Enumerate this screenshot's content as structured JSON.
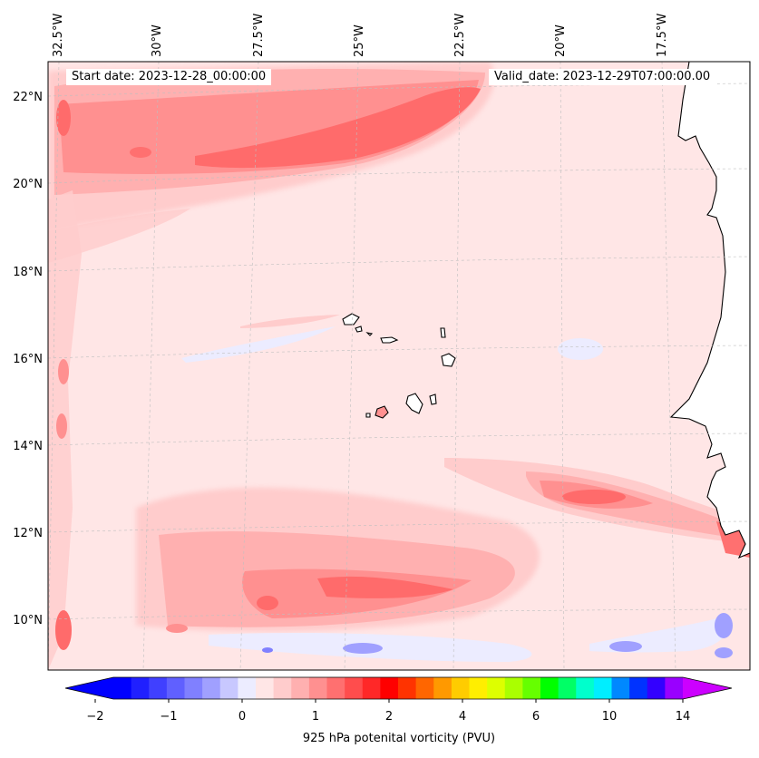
{
  "map": {
    "start_label": "Start date: 2023-12-28_00:00:00",
    "valid_label": "Valid_date: 2023-12-29T07:00:00.00",
    "lon_labels": [
      "32.5°W",
      "30°W",
      "27.5°W",
      "25°W",
      "22.5°W",
      "20°W",
      "17.5°W"
    ],
    "lat_labels": [
      "22°N",
      "20°N",
      "18°N",
      "16°N",
      "14°N",
      "12°N",
      "10°N"
    ],
    "background_color": "#ffe6e6",
    "land_color": "#ffffff",
    "coastline_color": "#000000"
  },
  "colorbar": {
    "title": "925 hPa potenital vorticity (PVU)",
    "tick_labels": [
      "−2",
      "−1",
      "0",
      "1",
      "2",
      "4",
      "6",
      "10",
      "14"
    ],
    "colors": [
      "#0000ff",
      "#2020ff",
      "#4040ff",
      "#6060ff",
      "#8080ff",
      "#a0a0ff",
      "#c8c8ff",
      "#ececff",
      "#ffe6e6",
      "#ffcccc",
      "#ffb0b0",
      "#ff9090",
      "#ff7070",
      "#ff4d4d",
      "#ff2828",
      "#ff0000",
      "#ff3300",
      "#ff6600",
      "#ff9900",
      "#ffcc00",
      "#ffee00",
      "#ddff00",
      "#aaff00",
      "#66ff00",
      "#00ff00",
      "#00ff66",
      "#00ffcc",
      "#00eeff",
      "#0088ff",
      "#0033ff",
      "#3300ff",
      "#9900ff"
    ],
    "extend_low_color": "#0000ff",
    "extend_high_color": "#cc00ff"
  }
}
